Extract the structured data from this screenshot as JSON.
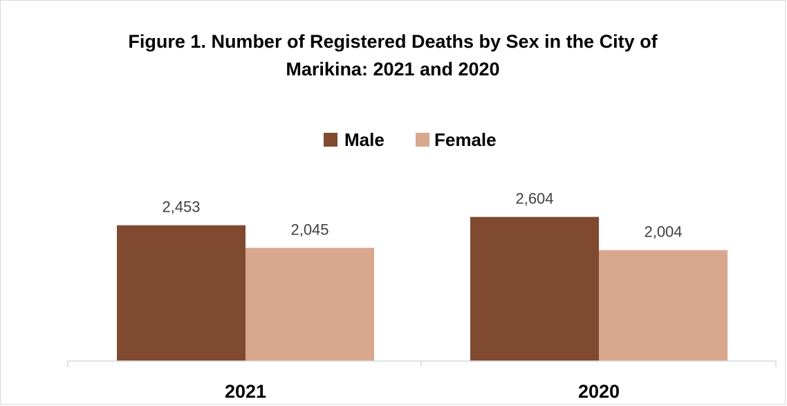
{
  "chart_data": {
    "type": "bar",
    "title_line1": "Figure 1. Number of Registered Deaths by Sex in the City of",
    "title_line2": "Marikina: 2021 and 2020",
    "categories": [
      "2021",
      "2020"
    ],
    "series": [
      {
        "name": "Male",
        "values": [
          2453,
          2604
        ],
        "labels": [
          "2,453",
          "2,604"
        ],
        "color": "#7f4a2f"
      },
      {
        "name": "Female",
        "values": [
          2045,
          2004
        ],
        "labels": [
          "2,045",
          "2,004"
        ],
        "color": "#d8a88e"
      }
    ],
    "ylim": [
      0,
      3000
    ],
    "grid": false,
    "legend": "top"
  }
}
